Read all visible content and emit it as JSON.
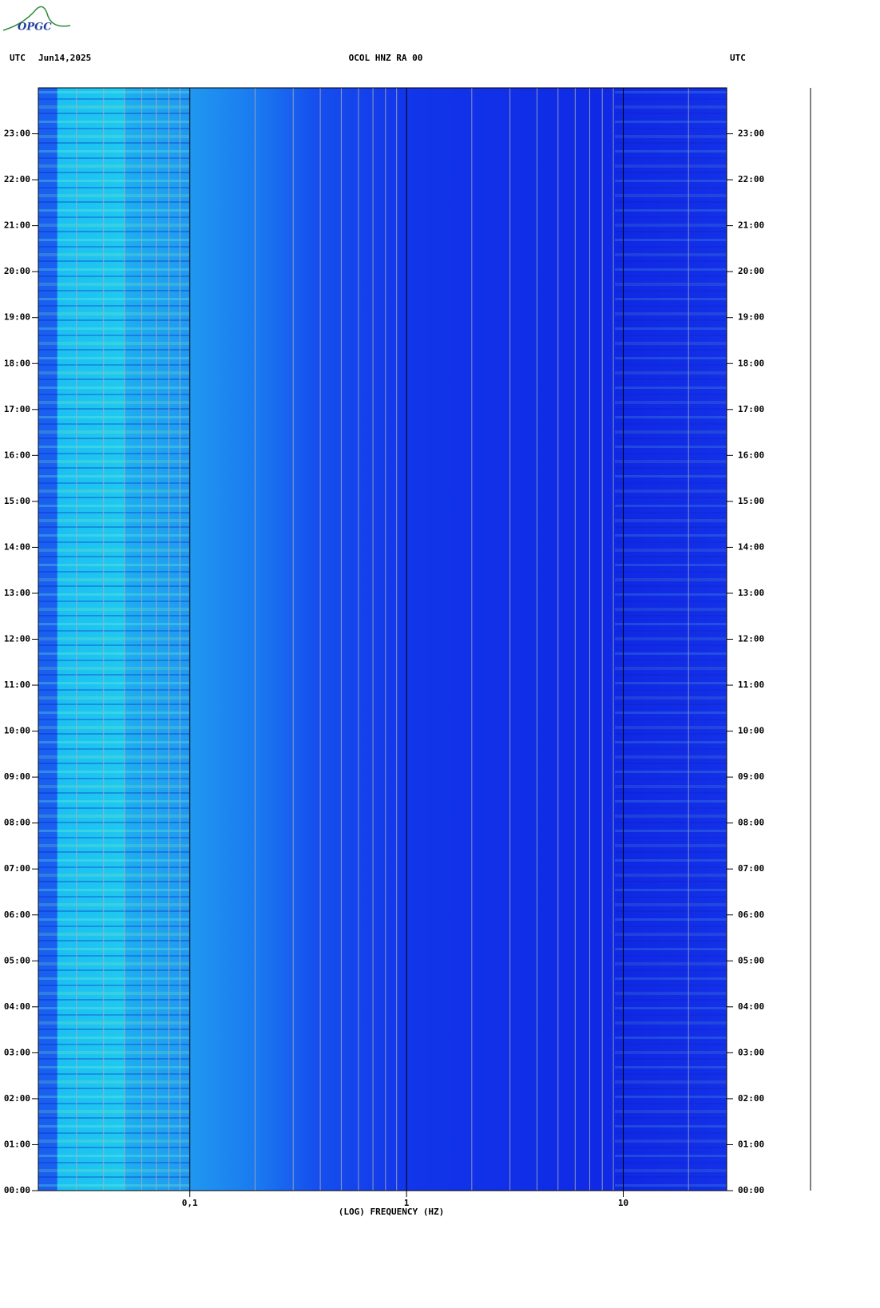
{
  "chart_data": {
    "type": "spectrogram",
    "logo": "OPGC",
    "left_label": "UTC",
    "date": "Jun14,2025",
    "title": "OCOL HNZ RA 00",
    "right_label": "UTC",
    "xlabel": "(LOG) FREQUENCY (HZ)",
    "xlog": true,
    "xlim": [
      0.02,
      30
    ],
    "xticks": [
      {
        "value": 0.1,
        "label": "0,1"
      },
      1,
      10
    ],
    "xminor_ticks": [
      0.03,
      0.04,
      0.05,
      0.06,
      0.07,
      0.08,
      0.09,
      0.2,
      0.3,
      0.4,
      0.5,
      0.6,
      0.7,
      0.8,
      0.9,
      2,
      3,
      4,
      5,
      6,
      7,
      8,
      9,
      20
    ],
    "ylim": [
      0,
      24
    ],
    "yticks": [
      {
        "value": 0,
        "label": "00:00"
      },
      {
        "value": 1,
        "label": "01:00"
      },
      {
        "value": 2,
        "label": "02:00"
      },
      {
        "value": 3,
        "label": "03:00"
      },
      {
        "value": 4,
        "label": "04:00"
      },
      {
        "value": 5,
        "label": "05:00"
      },
      {
        "value": 6,
        "label": "06:00"
      },
      {
        "value": 7,
        "label": "07:00"
      },
      {
        "value": 8,
        "label": "08:00"
      },
      {
        "value": 9,
        "label": "09:00"
      },
      {
        "value": 10,
        "label": "10:00"
      },
      {
        "value": 11,
        "label": "11:00"
      },
      {
        "value": 12,
        "label": "12:00"
      },
      {
        "value": 13,
        "label": "13:00"
      },
      {
        "value": 14,
        "label": "14:00"
      },
      {
        "value": 15,
        "label": "15:00"
      },
      {
        "value": 16,
        "label": "16:00"
      },
      {
        "value": 17,
        "label": "17:00"
      },
      {
        "value": 18,
        "label": "18:00"
      },
      {
        "value": 19,
        "label": "19:00"
      },
      {
        "value": 20,
        "label": "20:00"
      },
      {
        "value": 21,
        "label": "21:00"
      },
      {
        "value": 22,
        "label": "22:00"
      },
      {
        "value": 23,
        "label": "23:00"
      }
    ]
  }
}
